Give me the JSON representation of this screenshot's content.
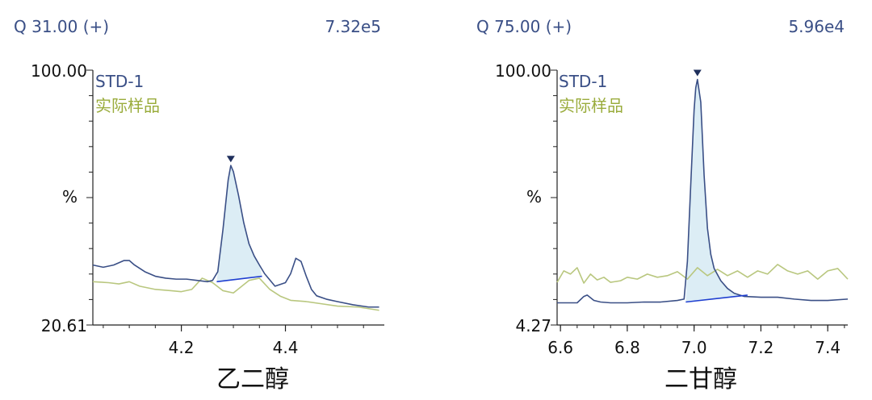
{
  "colors": {
    "std": "#3a4f86",
    "sample": "#b9c77f",
    "sample_text": "#9aac3c",
    "fill": "#dcedf5",
    "baseline": "#1f3fd0",
    "header": "#3a4f86"
  },
  "chart_data": [
    {
      "type": "line",
      "header_left": "Q 31.00 (+)",
      "header_right": "7.32e5",
      "ymax_label": "100.00",
      "ymin_label": "20.61",
      "ymid_label": "%",
      "legend": [
        "STD-1",
        "实际样品"
      ],
      "xlabel": "乙二醇",
      "xlim": [
        4.03,
        4.59
      ],
      "ylim": [
        20.61,
        100.0
      ],
      "xticks": [
        4.2,
        4.4
      ],
      "xtick_labels": [
        "4.2",
        "4.4"
      ],
      "series": [
        {
          "name": "STD-1",
          "x": [
            4.03,
            4.05,
            4.07,
            4.09,
            4.1,
            4.11,
            4.13,
            4.15,
            4.17,
            4.19,
            4.21,
            4.23,
            4.25,
            4.26,
            4.27,
            4.28,
            4.29,
            4.295,
            4.3,
            4.31,
            4.32,
            4.33,
            4.34,
            4.35,
            4.36,
            4.38,
            4.4,
            4.41,
            4.42,
            4.43,
            4.44,
            4.45,
            4.46,
            4.48,
            4.5,
            4.53,
            4.56,
            4.58
          ],
          "y": [
            39.3,
            38.6,
            39.3,
            40.7,
            40.7,
            39.3,
            37.2,
            35.8,
            35.2,
            34.9,
            34.9,
            34.5,
            34.1,
            34.5,
            37.2,
            50.4,
            65.8,
            70.3,
            68.4,
            60.9,
            52.4,
            45.9,
            42.1,
            39.3,
            36.6,
            32.7,
            33.8,
            36.6,
            41.4,
            40.4,
            35.8,
            31.7,
            29.7,
            28.6,
            27.9,
            26.9,
            26.2,
            26.2
          ]
        },
        {
          "name": "实际样品",
          "x": [
            4.03,
            4.06,
            4.08,
            4.1,
            4.12,
            4.15,
            4.18,
            4.2,
            4.22,
            4.24,
            4.26,
            4.28,
            4.3,
            4.33,
            4.35,
            4.37,
            4.39,
            4.41,
            4.44,
            4.47,
            4.5,
            4.54,
            4.58
          ],
          "y": [
            34.1,
            33.8,
            33.4,
            34.1,
            32.7,
            31.7,
            31.3,
            31.0,
            31.7,
            35.2,
            33.8,
            31.3,
            30.6,
            34.5,
            35.2,
            31.7,
            29.6,
            28.3,
            27.9,
            27.2,
            26.5,
            26.2,
            25.2
          ]
        }
      ],
      "peak": {
        "apex_x": 4.295,
        "apex_y": 70.3,
        "start_x": 4.268,
        "start_y": 34.1,
        "end_x": 4.355,
        "end_y": 35.8
      }
    },
    {
      "type": "line",
      "header_left": "Q 75.00 (+)",
      "header_right": "5.96e4",
      "ymax_label": "100.00",
      "ymin_label": "4.27",
      "ymid_label": "%",
      "legend": [
        "STD-1",
        "实际样品"
      ],
      "xlabel": "二甘醇",
      "xlim": [
        6.59,
        7.46
      ],
      "ylim": [
        4.27,
        100.0
      ],
      "xticks": [
        6.6,
        6.8,
        7.0,
        7.2,
        7.4
      ],
      "xtick_labels": [
        "6.6",
        "6.8",
        "7.0",
        "7.2",
        "7.4"
      ],
      "series": [
        {
          "name": "STD-1",
          "x": [
            6.59,
            6.62,
            6.65,
            6.67,
            6.68,
            6.7,
            6.72,
            6.75,
            6.8,
            6.85,
            6.9,
            6.95,
            6.97,
            6.98,
            6.99,
            7.0,
            7.005,
            7.01,
            7.02,
            7.03,
            7.04,
            7.05,
            7.06,
            7.08,
            7.1,
            7.12,
            7.15,
            7.2,
            7.25,
            7.3,
            7.35,
            7.4,
            7.46
          ],
          "y": [
            12.6,
            12.6,
            12.6,
            15.0,
            15.5,
            13.5,
            12.9,
            12.6,
            12.6,
            12.9,
            12.9,
            13.5,
            14.0,
            28.2,
            57.0,
            85.0,
            93.4,
            96.5,
            88.0,
            60.5,
            40.6,
            30.8,
            25.5,
            20.9,
            18.0,
            16.2,
            15.0,
            14.7,
            14.7,
            14.0,
            13.5,
            13.5,
            14.0
          ]
        },
        {
          "name": "实际样品",
          "x": [
            6.59,
            6.61,
            6.63,
            6.65,
            6.67,
            6.69,
            6.71,
            6.73,
            6.75,
            6.78,
            6.8,
            6.83,
            6.86,
            6.89,
            6.92,
            6.95,
            6.98,
            7.01,
            7.04,
            7.07,
            7.1,
            7.13,
            7.16,
            7.19,
            7.22,
            7.25,
            7.28,
            7.31,
            7.34,
            7.37,
            7.4,
            7.43,
            7.46
          ],
          "y": [
            20.3,
            24.6,
            23.4,
            25.8,
            20.0,
            23.4,
            21.2,
            22.2,
            20.3,
            20.9,
            22.2,
            21.5,
            23.4,
            22.2,
            22.8,
            24.3,
            21.5,
            25.8,
            22.8,
            25.2,
            22.8,
            24.6,
            22.2,
            24.6,
            23.4,
            27.0,
            24.6,
            23.4,
            24.6,
            21.5,
            24.6,
            25.5,
            21.5
          ]
        }
      ],
      "peak": {
        "apex_x": 7.01,
        "apex_y": 96.5,
        "start_x": 6.975,
        "start_y": 12.9,
        "end_x": 7.16,
        "end_y": 15.5
      }
    }
  ]
}
